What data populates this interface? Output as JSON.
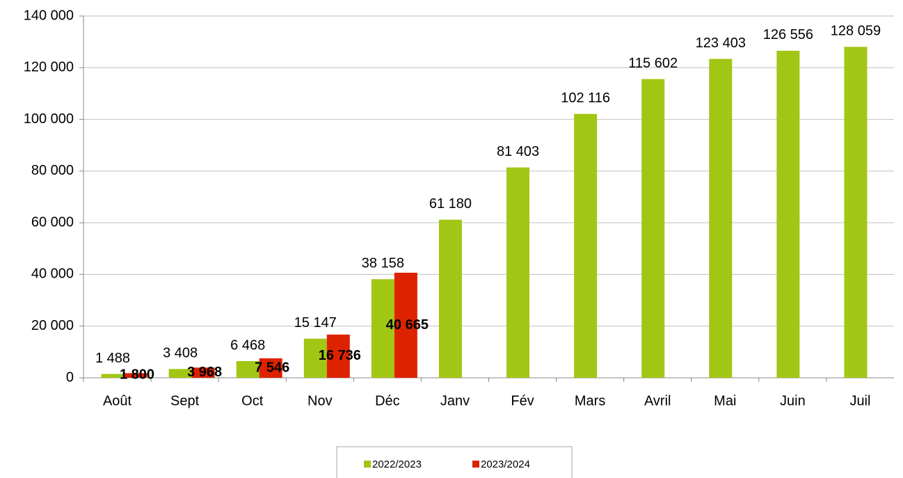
{
  "chart_data": {
    "type": "bar",
    "categories": [
      "Août",
      "Sept",
      "Oct",
      "Nov",
      "Déc",
      "Janv",
      "Fév",
      "Mars",
      "Avril",
      "Mai",
      "Juin",
      "Juil"
    ],
    "series": [
      {
        "name": "2022/2023",
        "color": "#a2c614",
        "values": [
          1488,
          3408,
          6468,
          15147,
          38158,
          61180,
          81403,
          102116,
          115602,
          123403,
          126556,
          128059
        ],
        "value_labels": [
          "1 488",
          "3 408",
          "6 468",
          "15 147",
          "38 158",
          "61 180",
          "81 403",
          "102 116",
          "115 602",
          "123 403",
          "126 556",
          "128 059"
        ]
      },
      {
        "name": "2023/2024",
        "color": "#dd2200",
        "values": [
          1800,
          3968,
          7546,
          16736,
          40665,
          null,
          null,
          null,
          null,
          null,
          null,
          null
        ],
        "value_labels": [
          "1 800",
          "3 968",
          "7 546",
          "16 736",
          "40 665",
          null,
          null,
          null,
          null,
          null,
          null,
          null
        ]
      }
    ],
    "ylim": [
      0,
      140000
    ],
    "yticks": [
      0,
      {
        "value": 20000,
        "label": "20 000"
      },
      {
        "value": 40000,
        "label": "40 000"
      },
      {
        "value": 60000,
        "label": "60 000"
      },
      {
        "value": 80000,
        "label": "80 000"
      },
      {
        "value": 100000,
        "label": "100 000"
      },
      {
        "value": 120000,
        "label": "120 000"
      },
      {
        "value": 140000,
        "label": "140 000"
      }
    ],
    "grid": true,
    "legend": "bottom"
  }
}
